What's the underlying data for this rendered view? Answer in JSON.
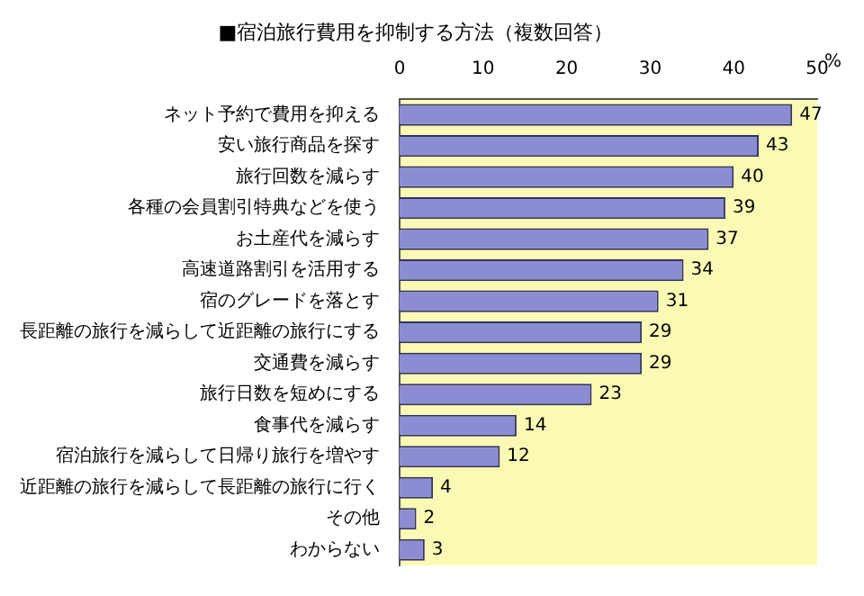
{
  "chart_data": {
    "type": "bar",
    "orientation": "horizontal",
    "title": "■宿泊旅行費用を抑制する方法（複数回答）",
    "xlabel": "%",
    "categories": [
      "ネット予約で費用を抑える",
      "安い旅行商品を探す",
      "旅行回数を減らす",
      "各種の会員割引特典などを使う",
      "お土産代を減らす",
      "高速道路割引を活用する",
      "宿のグレードを落とす",
      "長距離の旅行を減らして近距離の旅行にする",
      "交通費を減らす",
      "旅行日数を短めにする",
      "食事代を減らす",
      "宿泊旅行を減らして日帰り旅行を増やす",
      "近距離の旅行を減らして長距離の旅行に行く",
      "その他",
      "わからない"
    ],
    "values": [
      47,
      43,
      40,
      39,
      37,
      34,
      31,
      29,
      29,
      23,
      14,
      12,
      4,
      2,
      3
    ],
    "color": "#8c8cd2",
    "xlim": [
      0,
      50
    ],
    "xticks": [
      0,
      10,
      20,
      30,
      40,
      50
    ],
    "data_labels": true,
    "grid": false,
    "legend": false
  }
}
